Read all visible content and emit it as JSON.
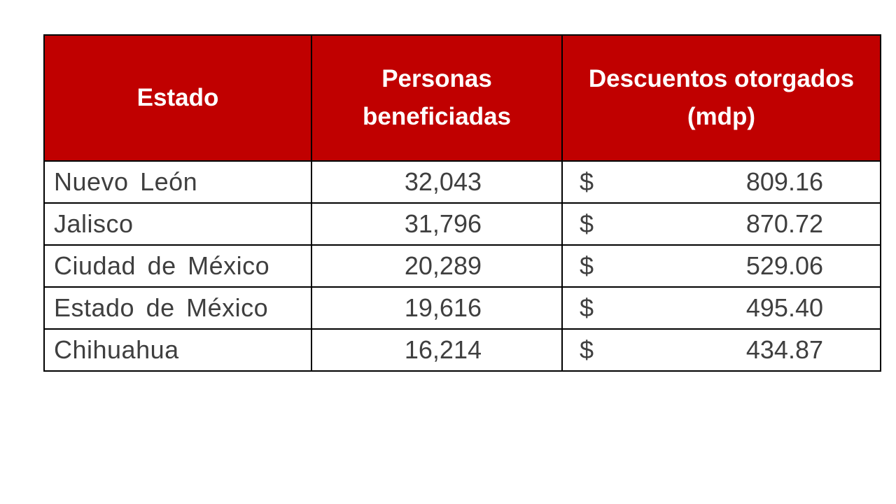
{
  "table": {
    "headers": {
      "estado": "Estado",
      "personas_line1": "Personas",
      "personas_line2": "beneficiadas",
      "descuentos_line1": "Descuentos otorgados",
      "descuentos_line2": "(mdp)"
    },
    "currency_symbol": "$",
    "rows": [
      {
        "estado": "Nuevo León",
        "personas": "32,043",
        "descuentos": "809.16"
      },
      {
        "estado": "Jalisco",
        "personas": "31,796",
        "descuentos": "870.72"
      },
      {
        "estado": "Ciudad de México",
        "personas": "20,289",
        "descuentos": "529.06"
      },
      {
        "estado": "Estado de México",
        "personas": "19,616",
        "descuentos": "495.40"
      },
      {
        "estado": "Chihuahua",
        "personas": "16,214",
        "descuentos": "434.87"
      }
    ],
    "colors": {
      "header_background": "#c00000",
      "header_text": "#ffffff",
      "body_text": "#3f3f3f",
      "border": "#000000"
    }
  }
}
